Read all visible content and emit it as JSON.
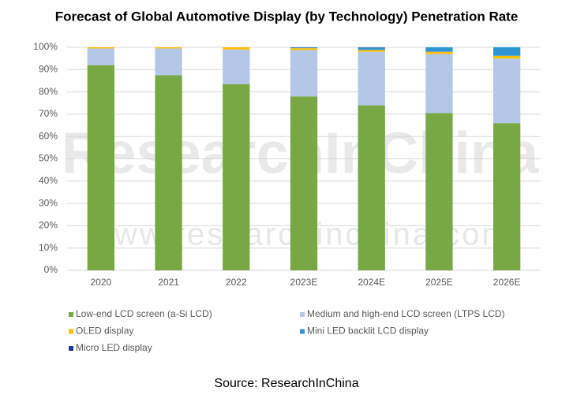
{
  "chart_data": {
    "type": "stacked-bar",
    "title": "Forecast of Global Automotive Display (by Technology) Penetration Rate",
    "categories": [
      "2020",
      "2021",
      "2022",
      "2023E",
      "2024E",
      "2025E",
      "2026E"
    ],
    "series": [
      {
        "name": "Low-end LCD screen (a-Si LCD)",
        "color": "#77a843",
        "values": [
          92,
          87.5,
          83.5,
          78,
          74,
          70.5,
          66
        ]
      },
      {
        "name": "Medium and high-end LCD screen (LTPS LCD)",
        "color": "#b4c7e7",
        "values": [
          7.5,
          12,
          15.5,
          20.8,
          24,
          26.5,
          29
        ]
      },
      {
        "name": "OLED display",
        "color": "#ffc000",
        "values": [
          0.5,
          0.5,
          1,
          0.8,
          0.8,
          1,
          1.2
        ]
      },
      {
        "name": "Mini LED backlit LCD display",
        "color": "#2e95d3",
        "values": [
          0,
          0,
          0,
          0.3,
          1.1,
          2,
          3.8
        ]
      },
      {
        "name": "Micro LED display",
        "color": "#1f3a93",
        "values": [
          0,
          0,
          0,
          0.1,
          0.1,
          0,
          0
        ]
      }
    ],
    "ylim": [
      0,
      100
    ],
    "yticks": [
      {
        "value": 0,
        "label": "0%"
      },
      {
        "value": 10,
        "label": "10%"
      },
      {
        "value": 20,
        "label": "20%"
      },
      {
        "value": 30,
        "label": "30%"
      },
      {
        "value": 40,
        "label": "40%"
      },
      {
        "value": 50,
        "label": "50%"
      },
      {
        "value": 60,
        "label": "60%"
      },
      {
        "value": 70,
        "label": "70%"
      },
      {
        "value": 80,
        "label": "80%"
      },
      {
        "value": 90,
        "label": "90%"
      },
      {
        "value": 100,
        "label": "100%"
      }
    ],
    "grid": true,
    "watermark": [
      "ResearchInChina",
      "www.researchinchina.com"
    ],
    "source": "Source: ResearchInChina"
  }
}
